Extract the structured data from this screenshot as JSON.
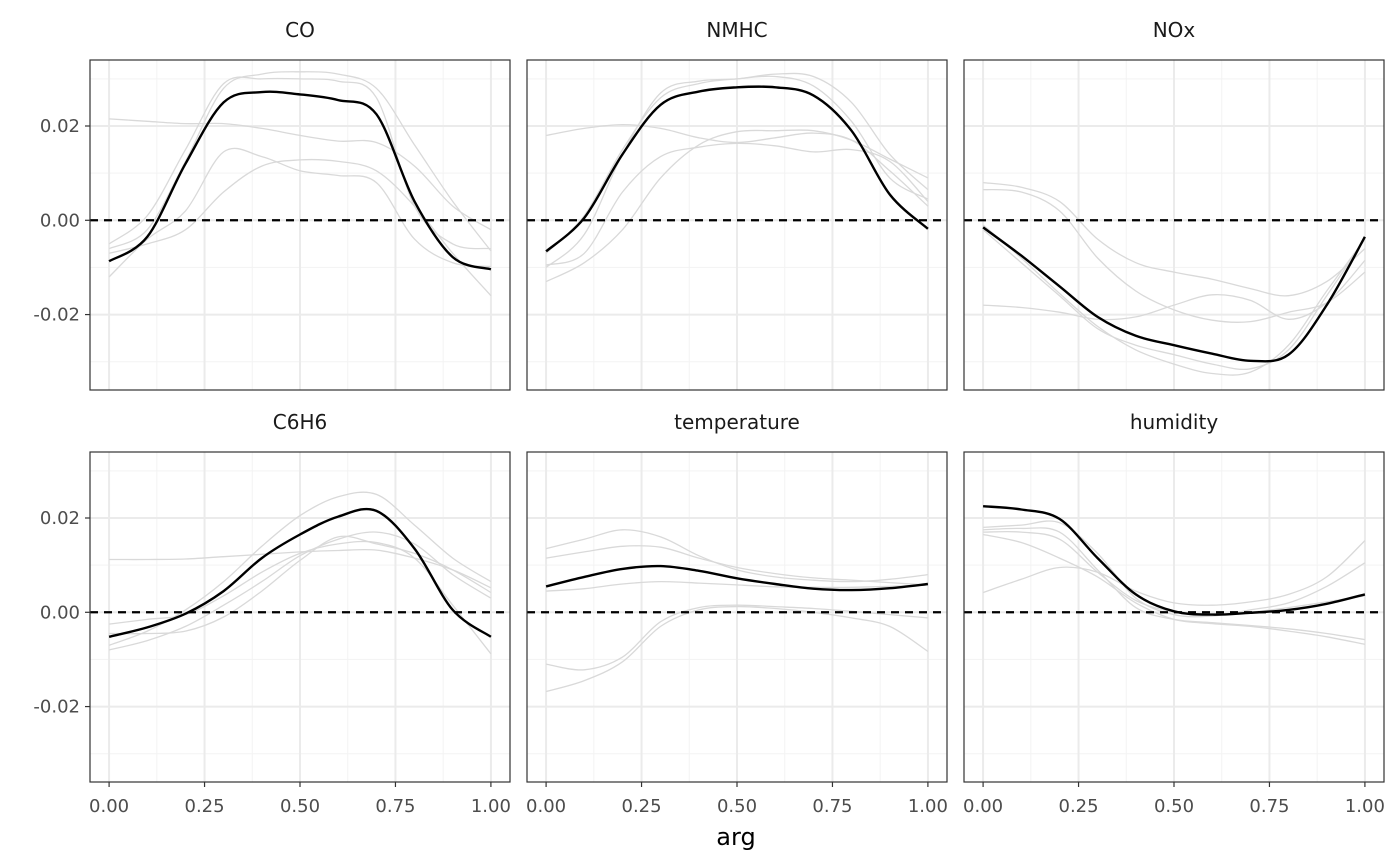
{
  "chart_data": {
    "type": "line",
    "xlabel": "arg",
    "ylabel": "",
    "xlim": [
      -0.05,
      1.05
    ],
    "ylim": [
      -0.036,
      0.034
    ],
    "x_ticks": [
      0,
      0.25,
      0.5,
      0.75,
      1
    ],
    "x_tick_labels": [
      "0.00",
      "0.25",
      "0.50",
      "0.75",
      "1.00"
    ],
    "y_ticks": [
      -0.02,
      0,
      0.02
    ],
    "y_tick_labels": [
      "-0.02",
      "0.00",
      "0.02"
    ],
    "x_minor": [
      0.125,
      0.375,
      0.625,
      0.875
    ],
    "y_minor": [
      -0.03,
      -0.01,
      0.01,
      0.03
    ],
    "reference_line": {
      "y": 0,
      "style": "dashed",
      "color": "#000000"
    },
    "colors": {
      "main": "#000000",
      "background_curves": "#d9d9d9",
      "grid_major": "#ebebeb",
      "grid_minor": "#f3f3f3",
      "panel_border": "#333333"
    },
    "facet_layout": {
      "rows": 2,
      "cols": 3
    },
    "x": [
      0,
      0.1,
      0.2,
      0.3,
      0.4,
      0.5,
      0.6,
      0.7,
      0.8,
      0.9,
      1.0
    ],
    "facets": [
      {
        "title": "CO",
        "main": [
          -0.0087,
          -0.0035,
          0.012,
          0.025,
          0.0272,
          0.0267,
          0.0255,
          0.0225,
          0.004,
          -0.0078,
          -0.0104
        ],
        "background": [
          [
            0.0215,
            0.021,
            0.0205,
            0.0205,
            0.0195,
            0.018,
            0.0168,
            0.0165,
            0.0115,
            0.003,
            -0.002
          ],
          [
            -0.006,
            -0.002,
            0.0125,
            0.028,
            0.031,
            0.0315,
            0.031,
            0.028,
            0.016,
            0.004,
            -0.0065
          ],
          [
            -0.012,
            -0.004,
            0.002,
            0.0145,
            0.0135,
            0.0105,
            0.0095,
            0.008,
            -0.004,
            -0.009,
            -0.0098
          ],
          [
            -0.007,
            -0.005,
            -0.002,
            0.006,
            0.0115,
            0.0128,
            0.0125,
            0.0105,
            0.003,
            -0.007,
            -0.016
          ],
          [
            -0.005,
            0.001,
            0.015,
            0.029,
            0.03,
            0.03,
            0.0295,
            0.026,
            0.003,
            -0.005,
            -0.006
          ]
        ]
      },
      {
        "title": "NMHC",
        "main": [
          -0.0066,
          0.0005,
          0.014,
          0.0245,
          0.0273,
          0.0282,
          0.0282,
          0.0265,
          0.019,
          0.0055,
          -0.0018
        ],
        "background": [
          [
            0.018,
            0.0195,
            0.0203,
            0.0195,
            0.0175,
            0.0165,
            0.0175,
            0.0185,
            0.017,
            0.0105,
            0.003
          ],
          [
            -0.0095,
            -0.007,
            0.006,
            0.0135,
            0.0155,
            0.0163,
            0.0158,
            0.0145,
            0.015,
            0.0125,
            0.004
          ],
          [
            -0.013,
            -0.009,
            -0.002,
            0.009,
            0.016,
            0.0188,
            0.019,
            0.019,
            0.017,
            0.013,
            0.009
          ],
          [
            -0.01,
            -0.003,
            0.014,
            0.027,
            0.0295,
            0.03,
            0.031,
            0.0305,
            0.025,
            0.014,
            0.0065
          ],
          [
            -0.007,
            0.001,
            0.015,
            0.026,
            0.029,
            0.03,
            0.0305,
            0.0285,
            0.021,
            0.009,
            0.0045
          ]
        ]
      },
      {
        "title": "NOx",
        "main": [
          -0.0015,
          -0.0075,
          -0.014,
          -0.0205,
          -0.0245,
          -0.0265,
          -0.0283,
          -0.0298,
          -0.0285,
          -0.018,
          -0.0035
        ],
        "background": [
          [
            0.008,
            0.007,
            0.004,
            -0.004,
            -0.009,
            -0.011,
            -0.0125,
            -0.0145,
            -0.016,
            -0.013,
            -0.006
          ],
          [
            -0.018,
            -0.0185,
            -0.0195,
            -0.021,
            -0.0205,
            -0.018,
            -0.0158,
            -0.017,
            -0.021,
            -0.0175,
            -0.0085
          ],
          [
            0.0065,
            0.006,
            0.002,
            -0.008,
            -0.015,
            -0.019,
            -0.0212,
            -0.0215,
            -0.0195,
            -0.0175,
            -0.011
          ],
          [
            -0.001,
            -0.008,
            -0.0155,
            -0.0225,
            -0.0275,
            -0.0305,
            -0.0325,
            -0.0322,
            -0.0265,
            -0.015,
            -0.004
          ],
          [
            -0.002,
            -0.009,
            -0.016,
            -0.023,
            -0.0265,
            -0.0285,
            -0.0305,
            -0.0315,
            -0.0275,
            -0.016,
            -0.004
          ]
        ]
      },
      {
        "title": "C6H6",
        "main": [
          -0.0052,
          -0.0032,
          -0.0003,
          0.0045,
          0.0115,
          0.0165,
          0.0203,
          0.0215,
          0.0135,
          0.0005,
          -0.0052
        ],
        "background": [
          [
            0.0112,
            0.0112,
            0.0113,
            0.0118,
            0.0123,
            0.0128,
            0.0131,
            0.0132,
            0.0115,
            0.009,
            0.0052
          ],
          [
            -0.0045,
            -0.0045,
            -0.004,
            -0.001,
            0.0045,
            0.011,
            0.016,
            0.0145,
            0.0125,
            0.009,
            0.0042
          ],
          [
            -0.007,
            -0.004,
            0.0005,
            0.0065,
            0.014,
            0.0205,
            0.0245,
            0.025,
            0.0185,
            0.0115,
            0.0065
          ],
          [
            -0.008,
            -0.006,
            -0.003,
            0.0015,
            0.0065,
            0.012,
            0.0155,
            0.017,
            0.0145,
            0.008,
            0.003
          ],
          [
            -0.0025,
            -0.0015,
            -0.0005,
            0.0035,
            0.0085,
            0.0125,
            0.0145,
            0.0148,
            0.0115,
            0.0015,
            -0.0088
          ]
        ]
      },
      {
        "title": "temperature",
        "main": [
          0.0055,
          0.0075,
          0.0092,
          0.0098,
          0.0088,
          0.0072,
          0.006,
          0.005,
          0.0047,
          0.0051,
          0.006
        ],
        "background": [
          [
            0.0135,
            0.0155,
            0.0175,
            0.016,
            0.012,
            0.009,
            0.0075,
            0.0068,
            0.0065,
            0.007,
            0.008
          ],
          [
            0.0115,
            0.0128,
            0.014,
            0.0138,
            0.0115,
            0.0095,
            0.0082,
            0.0073,
            0.0068,
            0.0063,
            0.0058
          ],
          [
            0.0045,
            0.005,
            0.006,
            0.0065,
            0.0062,
            0.0058,
            0.0054,
            0.0053,
            0.0053,
            0.0055,
            0.0058
          ],
          [
            -0.011,
            -0.0122,
            -0.0095,
            -0.002,
            0.001,
            0.0015,
            0.0012,
            0.0008,
            0.0002,
            -0.0005,
            -0.0012
          ],
          [
            -0.0168,
            -0.0145,
            -0.0105,
            -0.003,
            0.0005,
            0.0012,
            0.0008,
            0.0,
            -0.0012,
            -0.003,
            -0.0083
          ]
        ]
      },
      {
        "title": "humidity",
        "main": [
          0.0225,
          0.0218,
          0.0198,
          0.0115,
          0.0038,
          0.0002,
          -0.0005,
          -0.0001,
          0.0005,
          0.0018,
          0.0038
        ],
        "background": [
          [
            0.0042,
            0.007,
            0.0095,
            0.0085,
            0.0045,
            0.002,
            0.0015,
            0.0022,
            0.0038,
            0.0075,
            0.0152
          ],
          [
            0.018,
            0.0185,
            0.019,
            0.0125,
            0.003,
            -0.0005,
            -0.0008,
            0.0005,
            0.002,
            0.0055,
            0.0105
          ],
          [
            0.017,
            0.017,
            0.0155,
            0.0085,
            0.0025,
            0.0001,
            -0.0004,
            0.0,
            0.001,
            0.0022,
            0.0035
          ],
          [
            0.0175,
            0.0178,
            0.017,
            0.009,
            0.001,
            -0.0015,
            -0.0022,
            -0.0028,
            -0.0035,
            -0.0045,
            -0.0058
          ],
          [
            0.0165,
            0.0148,
            0.0115,
            0.0075,
            0.002,
            -0.0015,
            -0.0024,
            -0.003,
            -0.004,
            -0.0052,
            -0.0068
          ]
        ]
      }
    ]
  }
}
